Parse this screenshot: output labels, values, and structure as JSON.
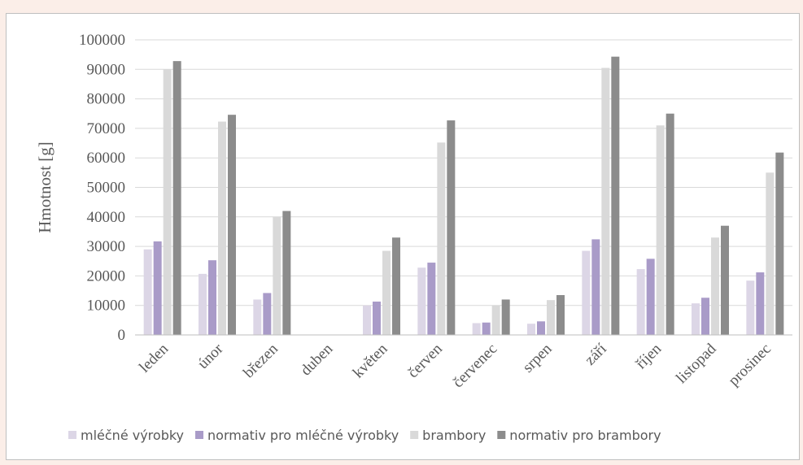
{
  "chart_data": {
    "type": "bar",
    "title": "",
    "xlabel": "",
    "ylabel": "Hmotnost [g]",
    "ylim": [
      0,
      100000
    ],
    "yticks": [
      0,
      10000,
      20000,
      30000,
      40000,
      50000,
      60000,
      70000,
      80000,
      90000,
      100000
    ],
    "grid": true,
    "legend_position": "bottom",
    "categories": [
      "leden",
      "únor",
      "březen",
      "duben",
      "květen",
      "červen",
      "červenec",
      "srpen",
      "září",
      "říjen",
      "listopad",
      "prosinec"
    ],
    "series": [
      {
        "name": "mléčné výrobky",
        "color": "#dcd6e6",
        "values": [
          29000,
          20700,
          12000,
          0,
          10000,
          22800,
          4000,
          3800,
          28500,
          22300,
          10700,
          18400
        ]
      },
      {
        "name": "normativ pro mléčné výrobky",
        "color": "#a99bc8",
        "values": [
          31700,
          25300,
          14200,
          0,
          11300,
          24500,
          4200,
          4600,
          32400,
          25800,
          12600,
          21200
        ]
      },
      {
        "name": "brambory",
        "color": "#d9d9d9",
        "values": [
          90000,
          72300,
          40000,
          0,
          28500,
          65200,
          10000,
          11800,
          90500,
          71000,
          33000,
          55000
        ]
      },
      {
        "name": "normativ pro brambory",
        "color": "#8c8c8c",
        "values": [
          92800,
          74600,
          42000,
          0,
          33000,
          72700,
          12000,
          13500,
          94300,
          75000,
          37000,
          61800
        ]
      }
    ]
  }
}
